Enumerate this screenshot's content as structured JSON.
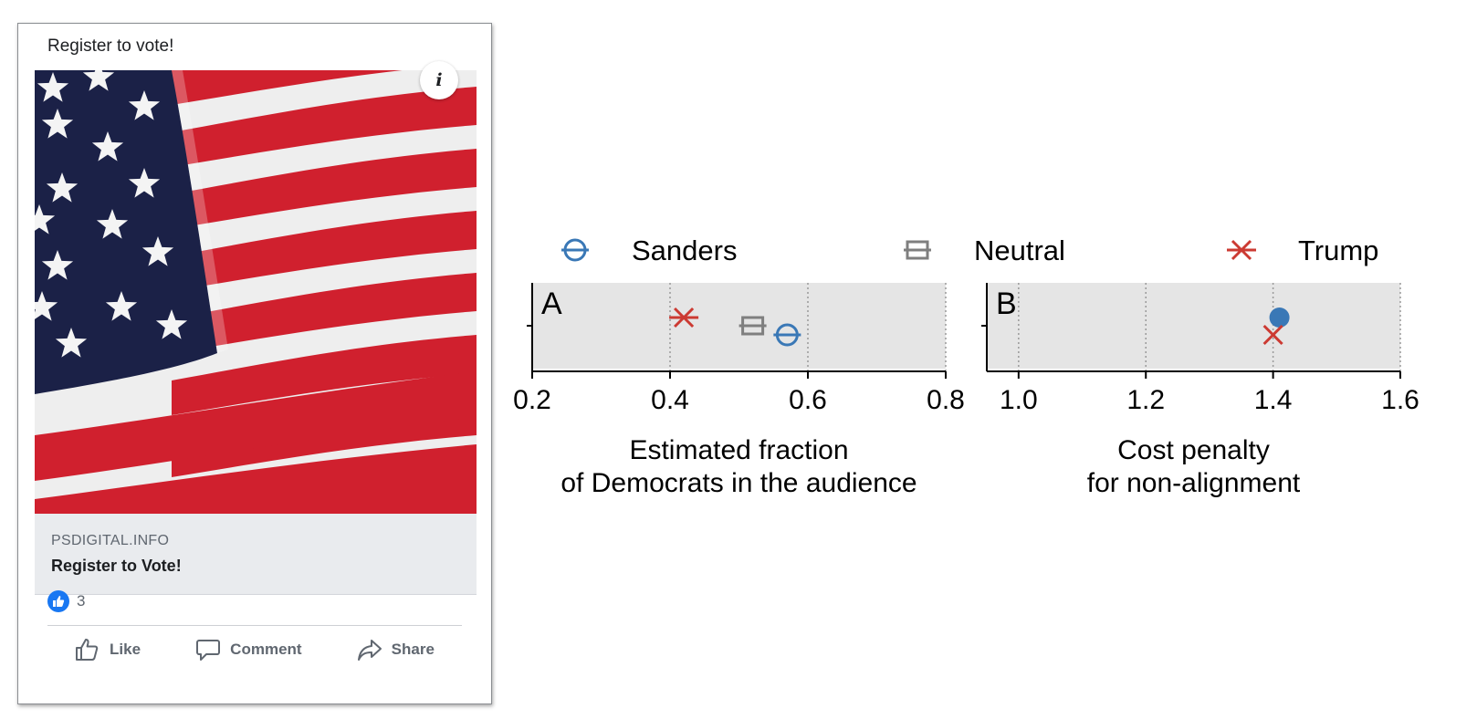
{
  "ad_card": {
    "headline": "Register to vote!",
    "info_icon": "i",
    "link_domain": "PSDIGITAL.INFO",
    "link_title": "Register to Vote!",
    "reaction_count": "3",
    "actions": [
      {
        "label": "Like",
        "icon": "thumbs-up-icon"
      },
      {
        "label": "Comment",
        "icon": "comment-icon"
      },
      {
        "label": "Share",
        "icon": "share-icon"
      }
    ],
    "colors": {
      "like_blue": "#1877f2",
      "flag_red": "#d0202e",
      "flag_blue": "#1b2147"
    }
  },
  "chart_data": [
    {
      "type": "scatter",
      "panel_label": "A",
      "xlabel_lines": [
        "Estimated fraction",
        "of Democrats in the audience"
      ],
      "xlim": [
        0.2,
        0.8
      ],
      "xticks": [
        "0.2",
        "0.4",
        "0.6",
        "0.8"
      ],
      "xtick_values": [
        0.2,
        0.4,
        0.6,
        0.8
      ],
      "grid": "vertical dotted",
      "series": [
        {
          "name": "Sanders",
          "x": 0.57,
          "marker": "circle-open",
          "color": "#3a78b6"
        },
        {
          "name": "Neutral",
          "x": 0.52,
          "marker": "square-open",
          "color": "#7f7f7f"
        },
        {
          "name": "Trump",
          "x": 0.42,
          "marker": "x",
          "color": "#cc3a32"
        }
      ]
    },
    {
      "type": "scatter",
      "panel_label": "B",
      "xlabel_lines": [
        "Cost penalty",
        "for non-alignment"
      ],
      "xlim": [
        0.95,
        1.6
      ],
      "xticks": [
        "1.0",
        "1.2",
        "1.4",
        "1.6"
      ],
      "xtick_values": [
        1.0,
        1.2,
        1.4,
        1.6
      ],
      "grid": "vertical dotted",
      "series": [
        {
          "name": "Sanders",
          "x": 1.41,
          "marker": "circle-filled",
          "color": "#3a78b6"
        },
        {
          "name": "Trump",
          "x": 1.4,
          "marker": "x",
          "color": "#cc3a32"
        }
      ]
    }
  ],
  "legend": {
    "placement": "top",
    "entries": [
      {
        "name": "Sanders",
        "marker": "circle-open",
        "color": "#3a78b6"
      },
      {
        "name": "Neutral",
        "marker": "square-open",
        "color": "#7f7f7f"
      },
      {
        "name": "Trump",
        "marker": "x",
        "color": "#cc3a32"
      }
    ]
  },
  "colors": {
    "panel_bg": "#e5e5e5",
    "grid": "#9a9a9a",
    "axis": "#000000"
  }
}
